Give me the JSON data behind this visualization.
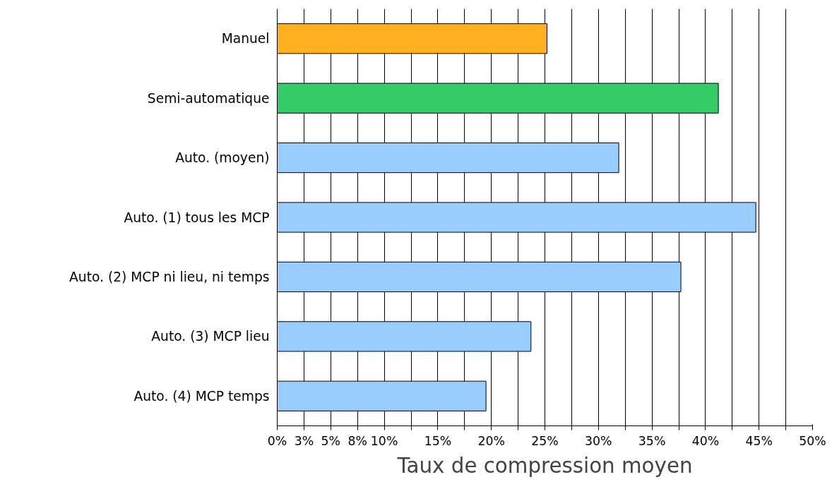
{
  "chart_data": {
    "type": "bar",
    "orientation": "horizontal",
    "xlabel": "Taux de compression moyen",
    "categories": [
      "Manuel",
      "Semi-automatique",
      "Auto. (moyen)",
      "Auto. (1) tous les MCP",
      "Auto. (2) MCP ni lieu, ni temps",
      "Auto. (3) MCP lieu",
      "Auto. (4) MCP temps"
    ],
    "values": [
      25.2,
      41.2,
      31.9,
      44.7,
      37.7,
      23.7,
      19.5
    ],
    "colors": [
      "#ffb11f",
      "#33cc66",
      "#99ccff",
      "#99ccff",
      "#99ccff",
      "#99ccff",
      "#99ccff"
    ],
    "xlim": [
      0,
      50
    ],
    "xticks": [
      {
        "value": 0,
        "label": "0%"
      },
      {
        "value": 2.5,
        "label": "3%"
      },
      {
        "value": 5,
        "label": "5%"
      },
      {
        "value": 7.5,
        "label": "8%"
      },
      {
        "value": 10,
        "label": "10%"
      },
      {
        "value": 12.5,
        "label": null
      },
      {
        "value": 15,
        "label": "15%"
      },
      {
        "value": 17.5,
        "label": null
      },
      {
        "value": 20,
        "label": "20%"
      },
      {
        "value": 22.5,
        "label": null
      },
      {
        "value": 25,
        "label": "25%"
      },
      {
        "value": 27.5,
        "label": null
      },
      {
        "value": 30,
        "label": "30%"
      },
      {
        "value": 32.5,
        "label": null
      },
      {
        "value": 35,
        "label": "35%"
      },
      {
        "value": 37.5,
        "label": null
      },
      {
        "value": 40,
        "label": "40%"
      },
      {
        "value": 42.5,
        "label": null
      },
      {
        "value": 45,
        "label": "45%"
      },
      {
        "value": 47.5,
        "label": null
      },
      {
        "value": 50,
        "label": "50%"
      }
    ],
    "grid": "x"
  }
}
